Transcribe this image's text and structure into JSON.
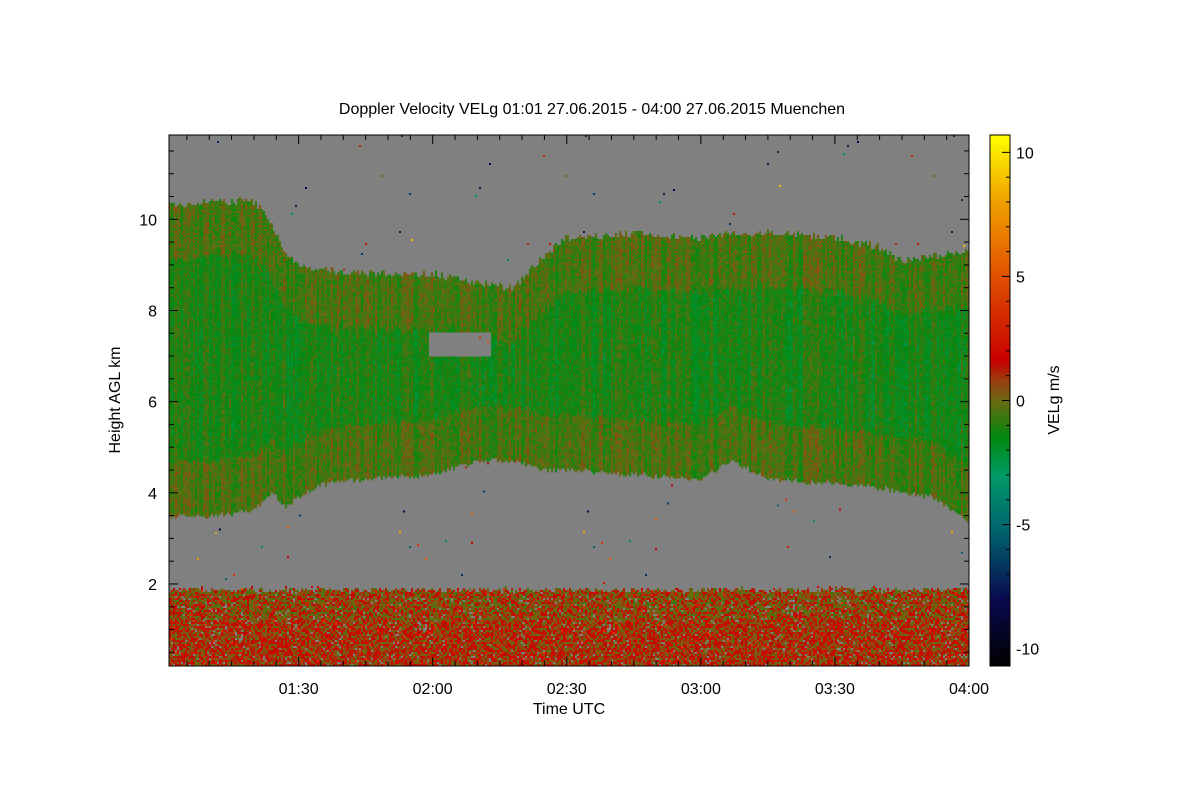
{
  "chart_data": {
    "type": "heatmap",
    "title": "Doppler Velocity VELg   01:01 27.06.2015 - 04:00 27.06.2015 Muenchen",
    "xlabel": "Time UTC",
    "ylabel": "Height AGL km",
    "xlim_minutes_utc": [
      61,
      240
    ],
    "ylim": [
      0.2,
      11.85
    ],
    "x_ticks": [
      {
        "label": "01:30",
        "minutes": 90
      },
      {
        "label": "02:00",
        "minutes": 120
      },
      {
        "label": "02:30",
        "minutes": 150
      },
      {
        "label": "03:00",
        "minutes": 180
      },
      {
        "label": "03:30",
        "minutes": 210
      },
      {
        "label": "04:00",
        "minutes": 240
      }
    ],
    "y_ticks": [
      {
        "label": "2",
        "value": 2
      },
      {
        "label": "4",
        "value": 4
      },
      {
        "label": "6",
        "value": 6
      },
      {
        "label": "8",
        "value": 8
      },
      {
        "label": "10",
        "value": 10
      }
    ],
    "colorbar": {
      "label": "VELg m/s",
      "range": [
        -10.7,
        10.7
      ],
      "ticks": [
        {
          "label": "10",
          "value": 10
        },
        {
          "label": "5",
          "value": 5
        },
        {
          "label": "0",
          "value": 0
        },
        {
          "label": "-5",
          "value": -5
        },
        {
          "label": "-10",
          "value": -10
        }
      ],
      "colormap": [
        [
          -10.7,
          "#000000"
        ],
        [
          -8,
          "#0a0a50"
        ],
        [
          -5,
          "#006a70"
        ],
        [
          -3,
          "#009a66"
        ],
        [
          -1.5,
          "#008a10"
        ],
        [
          0,
          "#6a6a10"
        ],
        [
          0.8,
          "#984010"
        ],
        [
          1.6,
          "#c80000"
        ],
        [
          5,
          "#e05000"
        ],
        [
          8,
          "#f0a000"
        ],
        [
          10.7,
          "#ffff00"
        ]
      ]
    },
    "no_data_color": "#808080",
    "cloud_layer": {
      "time_minutes": [
        61,
        70,
        80,
        84,
        87,
        90,
        95,
        105,
        120,
        130,
        138,
        145,
        150,
        165,
        180,
        187,
        195,
        210,
        220,
        225,
        232,
        238,
        240
      ],
      "top_km": [
        10.3,
        10.4,
        10.4,
        9.9,
        9.3,
        9.0,
        8.9,
        8.8,
        8.8,
        8.6,
        8.5,
        9.2,
        9.6,
        9.7,
        9.6,
        9.7,
        9.7,
        9.6,
        9.4,
        9.1,
        9.2,
        9.3,
        9.3
      ],
      "base_km": [
        3.5,
        3.5,
        3.6,
        4.0,
        3.7,
        3.9,
        4.2,
        4.3,
        4.4,
        4.7,
        4.7,
        4.5,
        4.5,
        4.4,
        4.3,
        4.7,
        4.3,
        4.2,
        4.1,
        4.0,
        3.9,
        3.5,
        3.3
      ],
      "mean_velocity": -1.2
    },
    "gap_in_cloud": {
      "time_minutes": [
        119,
        133
      ],
      "height_km": [
        7.0,
        7.5
      ]
    },
    "boundary_layer": {
      "top_km": 1.85,
      "mean_velocity": 0.6
    }
  }
}
